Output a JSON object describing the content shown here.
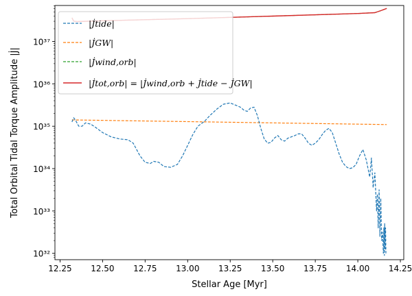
{
  "chart_data": {
    "type": "line",
    "title": "",
    "xlabel": "Stellar Age [Myr]",
    "ylabel": "Total Orbital Tidal Torque Amplitude |J̇|",
    "xlim": [
      12.22,
      14.27
    ],
    "ylim_log10": [
      31.85,
      37.85
    ],
    "y_scale": "log",
    "x_ticks": [
      12.25,
      12.5,
      12.75,
      13.0,
      13.25,
      13.5,
      13.75,
      14.0,
      14.25
    ],
    "x_tick_labels": [
      "12.25",
      "12.50",
      "12.75",
      "13.00",
      "13.25",
      "13.50",
      "13.75",
      "14.00",
      "14.25"
    ],
    "y_ticks_log10": [
      32,
      33,
      34,
      35,
      36,
      37
    ],
    "y_tick_labels": [
      "10³²",
      "10³³",
      "10³⁴",
      "10³⁵",
      "10³⁶",
      "10³⁷"
    ],
    "grid": false,
    "legend_position": "upper-left",
    "series": [
      {
        "name": "|J̇tide|",
        "color": "#1f77b4",
        "dash": "dashed",
        "x": [
          12.32,
          12.33,
          12.34,
          12.36,
          12.38,
          12.4,
          12.43,
          12.46,
          12.5,
          12.55,
          12.6,
          12.65,
          12.68,
          12.7,
          12.72,
          12.75,
          12.78,
          12.8,
          12.83,
          12.86,
          12.9,
          12.94,
          12.97,
          13.0,
          13.03,
          13.06,
          13.1,
          13.13,
          13.17,
          13.21,
          13.25,
          13.28,
          13.31,
          13.33,
          13.35,
          13.37,
          13.39,
          13.41,
          13.43,
          13.45,
          13.47,
          13.49,
          13.51,
          13.53,
          13.55,
          13.57,
          13.59,
          13.61,
          13.63,
          13.65,
          13.67,
          13.69,
          13.71,
          13.73,
          13.75,
          13.77,
          13.79,
          13.81,
          13.83,
          13.85,
          13.87,
          13.89,
          13.91,
          13.93,
          13.95,
          13.97,
          13.99,
          14.01,
          14.03,
          14.05,
          14.07,
          14.08,
          14.09,
          14.1,
          14.11,
          14.115,
          14.12,
          14.125,
          14.13,
          14.135,
          14.14,
          14.145,
          14.15,
          14.153,
          14.156,
          14.158,
          14.16,
          14.163,
          14.165
        ],
        "y_log10": [
          35.1,
          35.2,
          35.15,
          35.0,
          35.0,
          35.08,
          35.05,
          34.97,
          34.85,
          34.75,
          34.7,
          34.68,
          34.6,
          34.45,
          34.3,
          34.15,
          34.12,
          34.17,
          34.15,
          34.05,
          34.03,
          34.1,
          34.3,
          34.55,
          34.8,
          35.0,
          35.12,
          35.25,
          35.4,
          35.52,
          35.55,
          35.5,
          35.45,
          35.38,
          35.35,
          35.43,
          35.45,
          35.25,
          34.95,
          34.7,
          34.6,
          34.62,
          34.72,
          34.78,
          34.68,
          34.65,
          34.72,
          34.75,
          34.78,
          34.82,
          34.82,
          34.72,
          34.6,
          34.55,
          34.6,
          34.68,
          34.8,
          34.9,
          34.95,
          34.85,
          34.6,
          34.35,
          34.15,
          34.05,
          34.0,
          34.02,
          34.1,
          34.3,
          34.45,
          34.2,
          33.8,
          34.25,
          33.55,
          33.9,
          33.0,
          33.4,
          32.6,
          33.5,
          32.4,
          33.3,
          32.3,
          32.5,
          32.0,
          32.6,
          31.95,
          32.7,
          32.1,
          32.6,
          32.0
        ],
        "stroke_px": 1.2
      },
      {
        "name": "|J̇GW|",
        "color": "#ff7f0e",
        "dash": "dashed",
        "x": [
          12.32,
          14.17
        ],
        "y_log10": [
          35.15,
          35.04
        ],
        "stroke_px": 1.2
      },
      {
        "name": "|J̇wind,orb|",
        "color": "#2ca02c",
        "dash": "dashed",
        "x": [
          12.32,
          12.33,
          12.35,
          12.5,
          13.0,
          13.5,
          14.0,
          14.1,
          14.13,
          14.17
        ],
        "y_log10": [
          37.56,
          37.48,
          37.47,
          37.49,
          37.54,
          37.6,
          37.66,
          37.68,
          37.72,
          37.78
        ],
        "stroke_px": 1.2
      },
      {
        "name": "|J̇tot,orb| = |J̇wind,orb + J̇tide − J̇GW|",
        "color": "#d62728",
        "dash": "solid",
        "x": [
          12.32,
          12.33,
          12.35,
          12.5,
          13.0,
          13.5,
          14.0,
          14.1,
          14.13,
          14.17
        ],
        "y_log10": [
          37.56,
          37.48,
          37.47,
          37.49,
          37.54,
          37.6,
          37.66,
          37.68,
          37.72,
          37.78
        ],
        "stroke_px": 1.4
      }
    ]
  }
}
